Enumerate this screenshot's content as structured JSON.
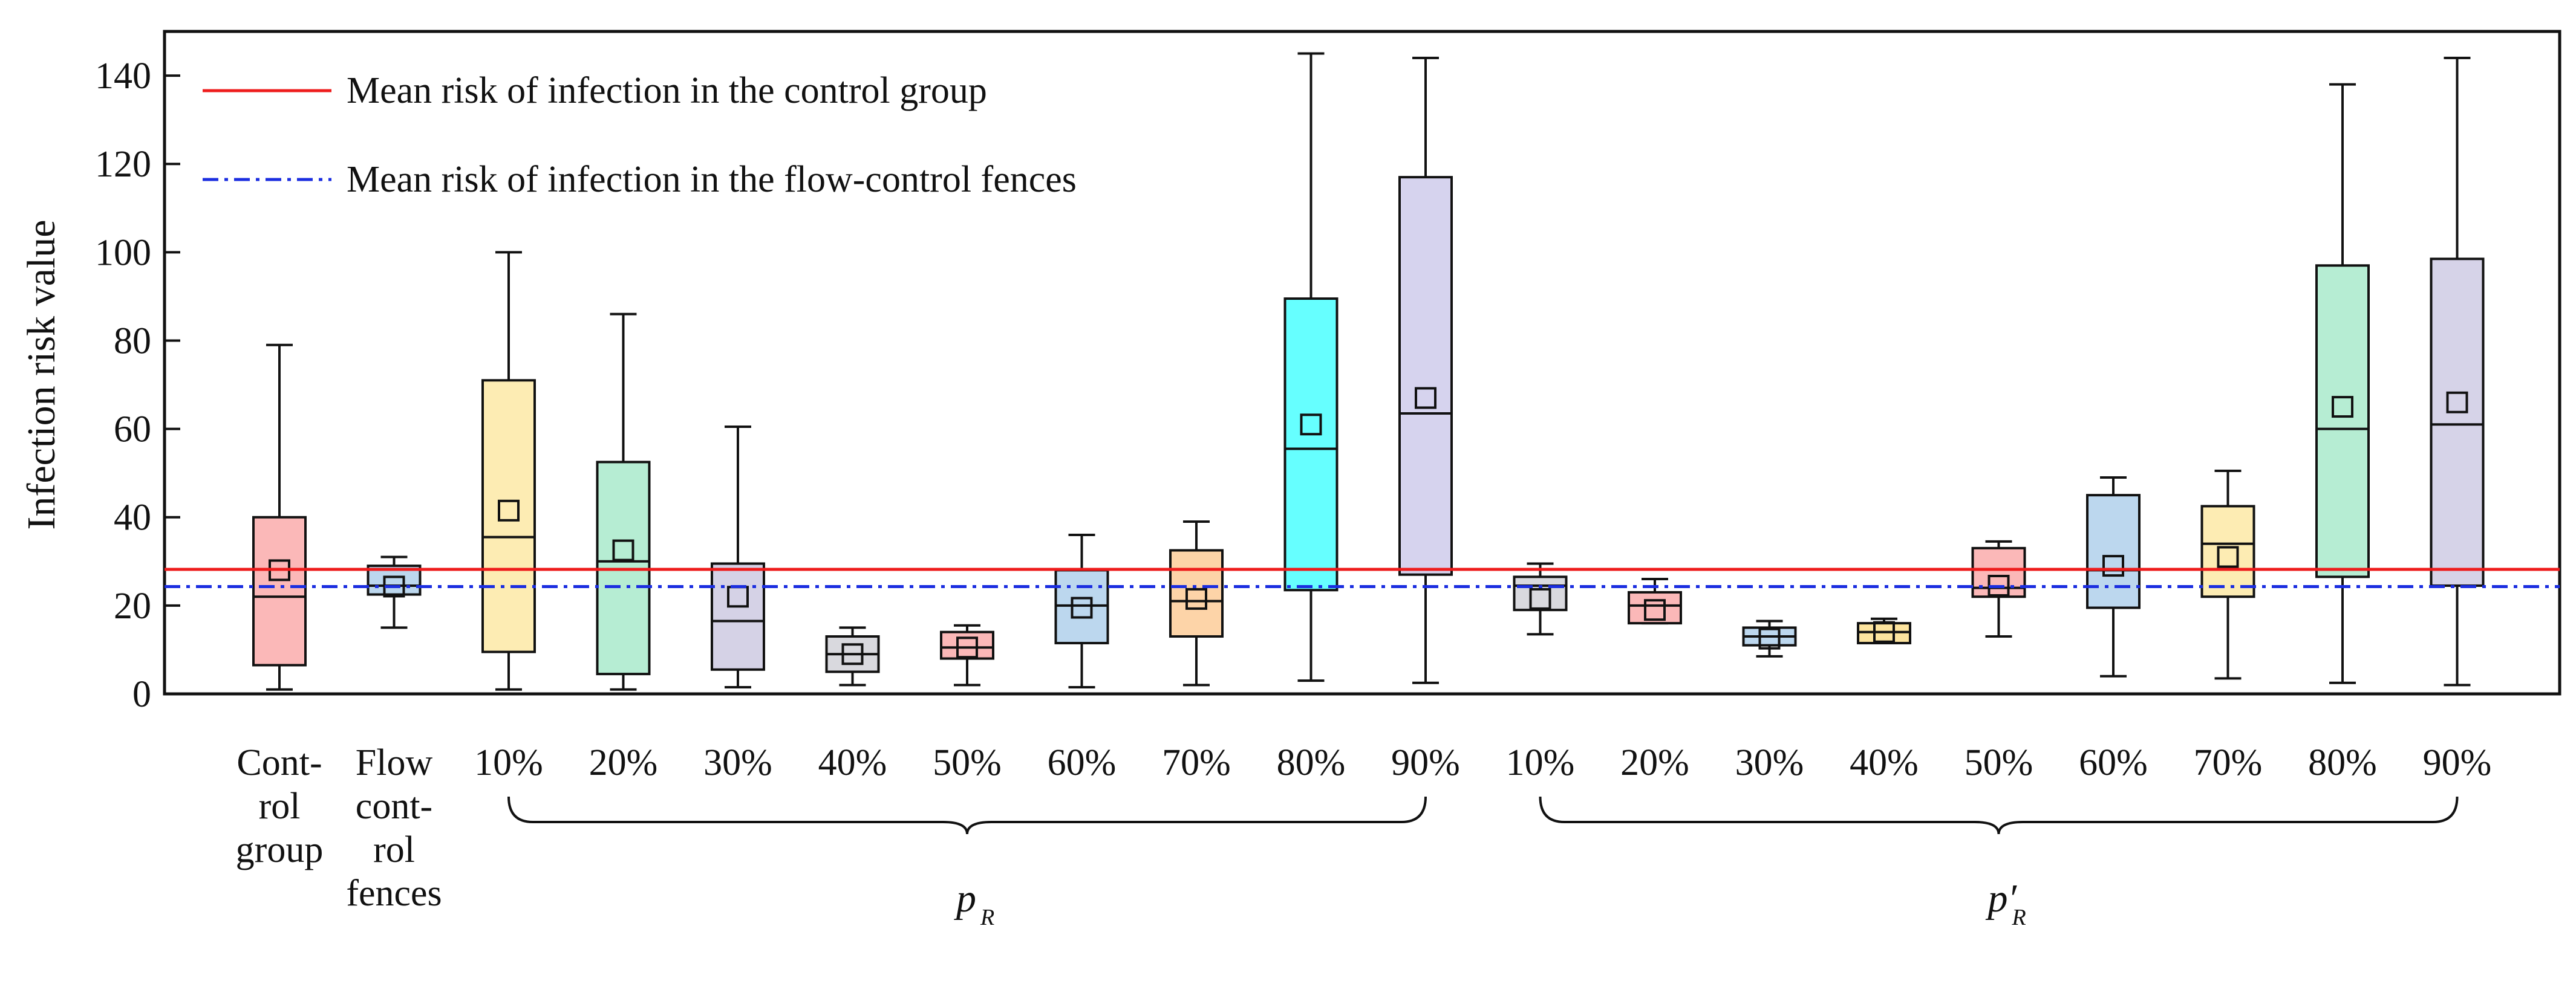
{
  "chart_data": {
    "type": "box",
    "ylabel": "Infection risk value",
    "ylim": [
      0,
      150
    ],
    "yticks": [
      0,
      20,
      40,
      60,
      80,
      100,
      120,
      140
    ],
    "legend": [
      {
        "label": "Mean risk of infection in the control group",
        "color": "#ee1c1c",
        "style": "solid",
        "value": 28.2
      },
      {
        "label": "Mean risk of infection in the flow-control fences",
        "color": "#1b2ee0",
        "style": "dashdot",
        "value": 24.3
      }
    ],
    "category_label_lines": [
      [
        "Cont-",
        "rol",
        "group"
      ],
      [
        "Flow",
        "cont-",
        "rol",
        "fences"
      ],
      [
        "10%"
      ],
      [
        "20%"
      ],
      [
        "30%"
      ],
      [
        "40%"
      ],
      [
        "50%"
      ],
      [
        "60%"
      ],
      [
        "70%"
      ],
      [
        "80%"
      ],
      [
        "90%"
      ],
      [
        "10%"
      ],
      [
        "20%"
      ],
      [
        "30%"
      ],
      [
        "40%"
      ],
      [
        "50%"
      ],
      [
        "60%"
      ],
      [
        "70%"
      ],
      [
        "80%"
      ],
      [
        "90%"
      ]
    ],
    "groups": [
      {
        "label": "p",
        "subscript": "R",
        "prime": false,
        "from": 2,
        "to": 10
      },
      {
        "label": "p",
        "subscript": "R",
        "prime": true,
        "from": 11,
        "to": 19
      }
    ],
    "boxes": [
      {
        "min": 1,
        "q1": 6.5,
        "median": 22,
        "q3": 40,
        "max": 79,
        "mean": 28,
        "color": "#fbb8b8"
      },
      {
        "min": 15,
        "q1": 22.5,
        "median": 24.5,
        "q3": 29,
        "max": 31,
        "mean": 24.3,
        "color": "#bcd7ee"
      },
      {
        "min": 1,
        "q1": 9.5,
        "median": 35.5,
        "q3": 71,
        "max": 100,
        "mean": 41.5,
        "color": "#fdecb3"
      },
      {
        "min": 1,
        "q1": 4.5,
        "median": 30,
        "q3": 52.5,
        "max": 86,
        "mean": 32.5,
        "color": "#b6edd3"
      },
      {
        "min": 1.5,
        "q1": 5.5,
        "median": 16.5,
        "q3": 29.5,
        "max": 60.5,
        "mean": 22,
        "color": "#d5d2e6"
      },
      {
        "min": 2,
        "q1": 5,
        "median": 9,
        "q3": 13,
        "max": 15,
        "mean": 9,
        "color": "#d9d9de"
      },
      {
        "min": 2,
        "q1": 8,
        "median": 10.5,
        "q3": 14,
        "max": 15.5,
        "mean": 10.5,
        "color": "#fbb8b8"
      },
      {
        "min": 1.5,
        "q1": 11.5,
        "median": 20,
        "q3": 28,
        "max": 36,
        "mean": 19.5,
        "color": "#bcd7ee"
      },
      {
        "min": 2,
        "q1": 13,
        "median": 21,
        "q3": 32.5,
        "max": 39,
        "mean": 21.5,
        "color": "#fdd4a8"
      },
      {
        "min": 3,
        "q1": 23.5,
        "median": 55.5,
        "q3": 89.5,
        "max": 145,
        "mean": 61,
        "color": "#66ffff"
      },
      {
        "min": 2.5,
        "q1": 27,
        "median": 63.5,
        "q3": 117,
        "max": 144,
        "mean": 67,
        "color": "#d6d3ee"
      },
      {
        "min": 13.5,
        "q1": 19,
        "median": 24.5,
        "q3": 26.5,
        "max": 29.5,
        "mean": 21.5,
        "color": "#d9d9de"
      },
      {
        "min": 16,
        "q1": 16,
        "median": 20,
        "q3": 23,
        "max": 26,
        "mean": 19,
        "color": "#fbb8b8"
      },
      {
        "min": 8.5,
        "q1": 11,
        "median": 13,
        "q3": 15,
        "max": 16.5,
        "mean": 12.5,
        "color": "#bcd7ee"
      },
      {
        "min": 11.5,
        "q1": 11.5,
        "median": 14,
        "q3": 16,
        "max": 17,
        "mean": 14,
        "color": "#fde49e"
      },
      {
        "min": 13,
        "q1": 22,
        "median": 24,
        "q3": 33,
        "max": 34.5,
        "mean": 24.5,
        "color": "#fbb8b8"
      },
      {
        "min": 4,
        "q1": 19.5,
        "median": 28,
        "q3": 45,
        "max": 49,
        "mean": 29,
        "color": "#bcd7ee"
      },
      {
        "min": 3.5,
        "q1": 22,
        "median": 34,
        "q3": 42.5,
        "max": 50.5,
        "mean": 31,
        "color": "#fdecb3"
      },
      {
        "min": 2.5,
        "q1": 26.5,
        "median": 60,
        "q3": 97,
        "max": 138,
        "mean": 65,
        "color": "#b6edd3"
      },
      {
        "min": 2,
        "q1": 24.5,
        "median": 61,
        "q3": 98.5,
        "max": 144,
        "mean": 66,
        "color": "#d6d3e8"
      }
    ]
  }
}
